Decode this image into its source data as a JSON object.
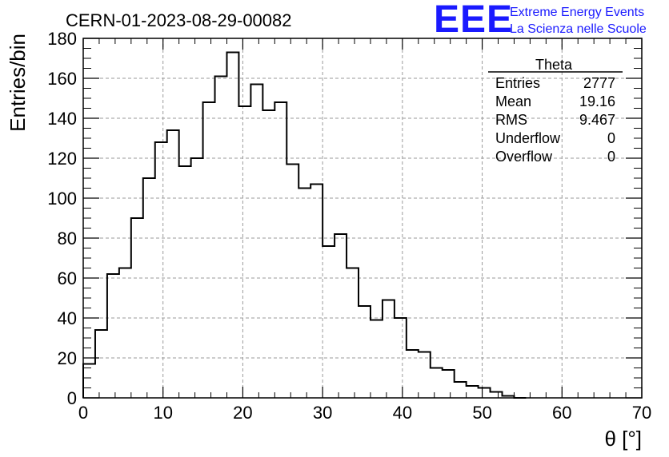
{
  "header": {
    "title": "CERN-01-2023-08-29-00082",
    "logo_letters": "EEE",
    "logo_line1": "Extreme Energy Events",
    "logo_line2": "La Scienza nelle Scuole"
  },
  "stats": {
    "name": "Theta",
    "rows": [
      {
        "label": "Entries",
        "value": "2777"
      },
      {
        "label": "Mean",
        "value": "19.16"
      },
      {
        "label": "RMS",
        "value": "9.467"
      },
      {
        "label": "Underflow",
        "value": "0"
      },
      {
        "label": "Overflow",
        "value": "0"
      }
    ]
  },
  "colors": {
    "logo": "#1a1aff",
    "line": "#000000",
    "grid": "#9a9a9a"
  },
  "chart_data": {
    "type": "bar",
    "style": "step-histogram",
    "xlabel": "θ [°]",
    "ylabel": "Entries/bin",
    "xlim": [
      0,
      70
    ],
    "ylim": [
      0,
      180
    ],
    "x_ticks": [
      0,
      10,
      20,
      30,
      40,
      50,
      60,
      70
    ],
    "y_ticks": [
      0,
      20,
      40,
      60,
      80,
      100,
      120,
      140,
      160,
      180
    ],
    "grid": true,
    "bin_width": 1.5,
    "bin_edges_start": 0,
    "values": [
      17,
      34,
      62,
      65,
      90,
      110,
      128,
      134,
      116,
      120,
      148,
      161,
      173,
      146,
      157,
      144,
      148,
      117,
      105,
      107,
      76,
      82,
      65,
      46,
      39,
      49,
      40,
      24,
      23,
      15,
      14,
      8,
      6,
      5,
      3,
      1,
      0
    ]
  }
}
